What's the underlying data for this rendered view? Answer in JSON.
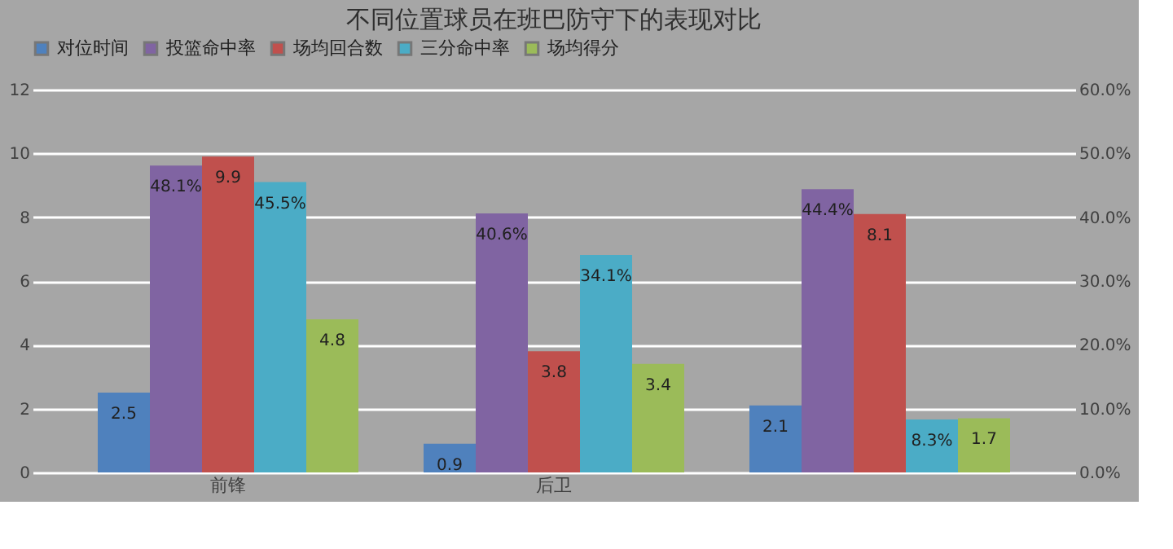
{
  "chart_data": {
    "type": "bar",
    "title": "不同位置球员在班巴防守下的表现对比",
    "categories": [
      "前锋",
      "后卫",
      null
    ],
    "series": [
      {
        "name": "对位时间",
        "color": "#4f81bd",
        "values": [
          2.5,
          0.9,
          2.1
        ],
        "value_labels": [
          "2.5",
          "0.9",
          "2.1"
        ]
      },
      {
        "name": "投篮命中率",
        "color": "#8064a2",
        "axis": "y2",
        "values": [
          48.1,
          40.6,
          44.4
        ],
        "value_labels": [
          "48.1%",
          "40.6%",
          "44.4%"
        ]
      },
      {
        "name": "场均回合数",
        "color": "#c0504d",
        "values": [
          9.9,
          3.8,
          8.1
        ],
        "value_labels": [
          "9.9",
          "3.8",
          "8.1"
        ]
      },
      {
        "name": "三分命中率",
        "color": "#4bacc6",
        "axis": "y2",
        "values": [
          45.5,
          34.1,
          8.3
        ],
        "value_labels": [
          "45.5%",
          "34.1%",
          "8.3%"
        ]
      },
      {
        "name": "场均得分",
        "color": "#9bbb59",
        "values": [
          4.8,
          3.4,
          1.7
        ],
        "value_labels": [
          "4.8",
          "3.4",
          "1.7"
        ]
      }
    ],
    "ylim": [
      0,
      12
    ],
    "yticks": [
      0,
      2,
      4,
      6,
      8,
      10,
      12
    ],
    "y2lim": [
      0,
      60
    ],
    "y2ticks": [
      {
        "value": 0,
        "label": "0.0%"
      },
      {
        "value": 10,
        "label": "10.0%"
      },
      {
        "value": 20,
        "label": "20.0%"
      },
      {
        "value": 30,
        "label": "30.0%"
      },
      {
        "value": 40,
        "label": "40.0%"
      },
      {
        "value": 50,
        "label": "50.0%"
      },
      {
        "value": 60,
        "label": "60.0%"
      }
    ],
    "grid": "y",
    "legend": "top"
  }
}
